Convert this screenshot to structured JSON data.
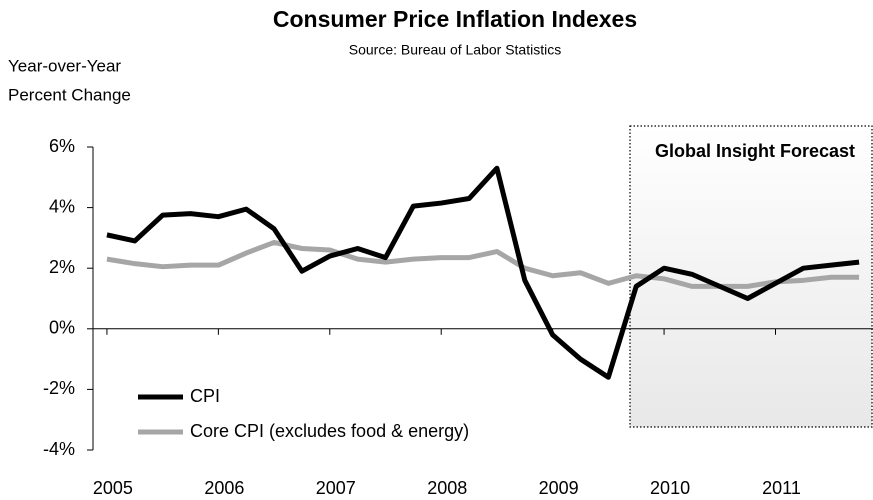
{
  "chart_data": {
    "type": "line",
    "title": "Consumer Price Inflation Indexes",
    "subtitle": "Source: Bureau of Labor Statistics",
    "y_label": [
      "Year-over-Year",
      "Percent Change"
    ],
    "annotation": "Global Insight Forecast",
    "x": [
      2005,
      2005.25,
      2005.5,
      2005.75,
      2006,
      2006.25,
      2006.5,
      2006.75,
      2007,
      2007.25,
      2007.5,
      2007.75,
      2008,
      2008.25,
      2008.5,
      2008.75,
      2009,
      2009.25,
      2009.5,
      2009.75,
      2010,
      2010.25,
      2010.5,
      2010.75,
      2011,
      2011.25,
      2011.5,
      2011.75
    ],
    "series": [
      {
        "name": "CPI",
        "color": "#000000",
        "values": [
          3.1,
          2.9,
          3.75,
          3.8,
          3.7,
          3.95,
          3.3,
          1.9,
          2.4,
          2.65,
          2.35,
          4.05,
          4.15,
          4.3,
          5.3,
          1.6,
          -0.2,
          -1.0,
          -1.6,
          1.4,
          2.0,
          1.8,
          1.4,
          1.0,
          1.5,
          2.0,
          2.1,
          2.2
        ]
      },
      {
        "name": "Core CPI (excludes food & energy)",
        "color": "#a6a6a6",
        "values": [
          2.3,
          2.15,
          2.05,
          2.1,
          2.1,
          2.5,
          2.85,
          2.65,
          2.6,
          2.3,
          2.2,
          2.3,
          2.35,
          2.35,
          2.55,
          2.0,
          1.75,
          1.85,
          1.5,
          1.75,
          1.65,
          1.4,
          1.4,
          1.4,
          1.55,
          1.6,
          1.7,
          1.7
        ]
      }
    ],
    "xlim": [
      2004.875,
      2011.875
    ],
    "xticks": [
      2005,
      2006,
      2007,
      2008,
      2009,
      2010,
      2011
    ],
    "ylim": [
      -4,
      6
    ],
    "yticks": [
      {
        "value": -4,
        "label": "-4%"
      },
      {
        "value": -2,
        "label": "-2%"
      },
      {
        "value": 0,
        "label": "0%"
      },
      {
        "value": 2,
        "label": "2%"
      },
      {
        "value": 4,
        "label": "4%"
      },
      {
        "value": 6,
        "label": "6%"
      }
    ],
    "grid": false,
    "legend": "lower left"
  }
}
